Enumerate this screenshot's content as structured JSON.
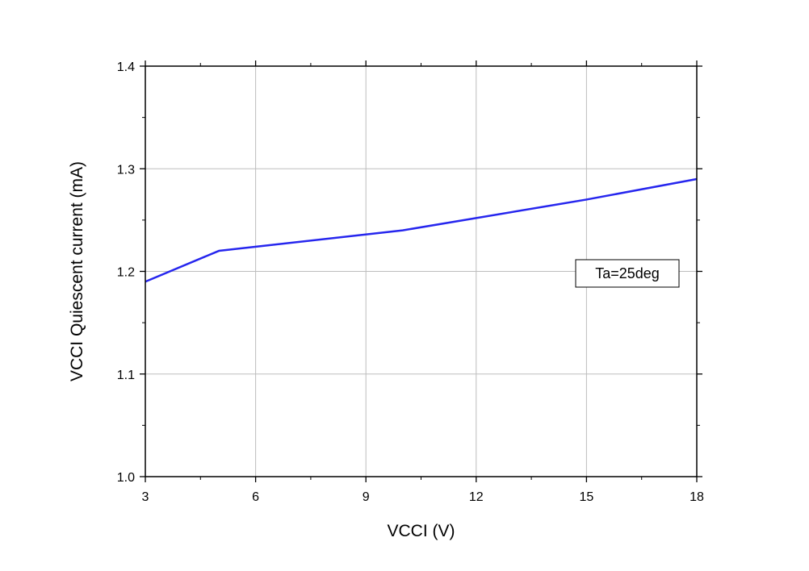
{
  "chart_data": {
    "type": "line",
    "xlabel": "VCCI (V)",
    "ylabel": "VCCI Quiescent current  (mA)",
    "xlim": [
      3,
      18
    ],
    "ylim": [
      1.0,
      1.4
    ],
    "xticks": [
      3,
      6,
      9,
      12,
      15,
      18
    ],
    "yticks": [
      1.0,
      1.1,
      1.2,
      1.3,
      1.4
    ],
    "xtick_labels": [
      "3",
      "6",
      "9",
      "12",
      "15",
      "18"
    ],
    "ytick_labels": [
      "1.0",
      "1.1",
      "1.2",
      "1.3",
      "1.4"
    ],
    "grid": true,
    "series": [
      {
        "color": "#2626ee",
        "x": [
          3,
          5,
          10,
          15,
          18
        ],
        "y": [
          1.19,
          1.22,
          1.24,
          1.27,
          1.29
        ]
      }
    ],
    "annotations": [
      {
        "text": "Ta=25deg"
      }
    ]
  }
}
